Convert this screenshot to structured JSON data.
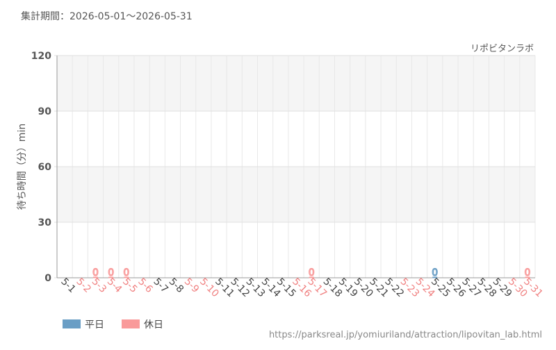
{
  "chart_data": {
    "type": "bar",
    "title": "集計期間：2026-05-01～2026-05-31",
    "subtitle": "リポビタンラボ",
    "y_label": "待ち時間（分）min",
    "source": "https://parksreal.jp/yomiuriland/attraction/lipovitan_lab.html",
    "categories": [
      "5-1",
      "5-2",
      "5-3",
      "5-4",
      "5-5",
      "5-6",
      "5-7",
      "5-8",
      "5-9",
      "5-10",
      "5-11",
      "5-12",
      "5-13",
      "5-14",
      "5-15",
      "5-16",
      "5-17",
      "5-18",
      "5-19",
      "5-20",
      "5-21",
      "5-22",
      "5-23",
      "5-24",
      "5-25",
      "5-26",
      "5-27",
      "5-28",
      "5-29",
      "5-30",
      "5-31"
    ],
    "category_colors": [
      "#444",
      "#f08080",
      "#f08080",
      "#f08080",
      "#f08080",
      "#f08080",
      "#444",
      "#444",
      "#f08080",
      "#f08080",
      "#444",
      "#444",
      "#444",
      "#444",
      "#444",
      "#f08080",
      "#f08080",
      "#444",
      "#444",
      "#444",
      "#444",
      "#444",
      "#f08080",
      "#f08080",
      "#444",
      "#444",
      "#444",
      "#444",
      "#444",
      "#f08080",
      "#f08080"
    ],
    "series": [
      {
        "name": "平日",
        "color": "#6a9ec5",
        "values": [
          null,
          null,
          null,
          null,
          null,
          null,
          null,
          null,
          null,
          null,
          null,
          null,
          null,
          null,
          null,
          null,
          null,
          null,
          null,
          null,
          null,
          null,
          null,
          null,
          0,
          null,
          null,
          null,
          null,
          null,
          null
        ]
      },
      {
        "name": "休日",
        "color": "#f99a9a",
        "values": [
          null,
          null,
          0,
          0,
          0,
          null,
          null,
          null,
          null,
          null,
          null,
          null,
          null,
          null,
          null,
          null,
          0,
          null,
          null,
          null,
          null,
          null,
          null,
          null,
          null,
          null,
          null,
          null,
          null,
          null,
          0
        ]
      }
    ],
    "ylim": [
      0,
      120
    ],
    "yticks": [
      0,
      30,
      60,
      90,
      120
    ],
    "grid": true
  }
}
